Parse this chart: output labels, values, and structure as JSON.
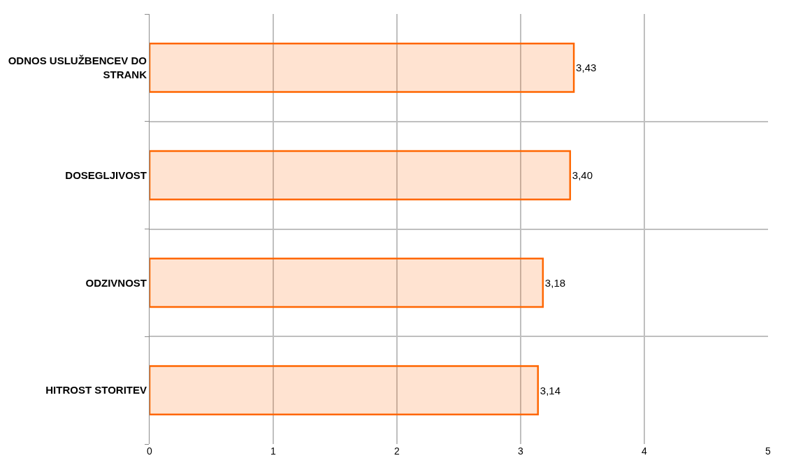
{
  "chart_data": {
    "type": "bar",
    "orientation": "horizontal",
    "categories": [
      "ODNOS USLUŽBENCEV DO STRANK",
      "DOSEGLJIVOST",
      "ODZIVNOST",
      "HITROST STORITEV"
    ],
    "values": [
      3.43,
      3.4,
      3.18,
      3.14
    ],
    "value_labels": [
      "3,43",
      "3,40",
      "3,18",
      "3,14"
    ],
    "color": "#ff6600",
    "xlim": [
      0,
      5
    ],
    "xticks": [
      0,
      1,
      2,
      3,
      4,
      5
    ],
    "grid": true
  }
}
